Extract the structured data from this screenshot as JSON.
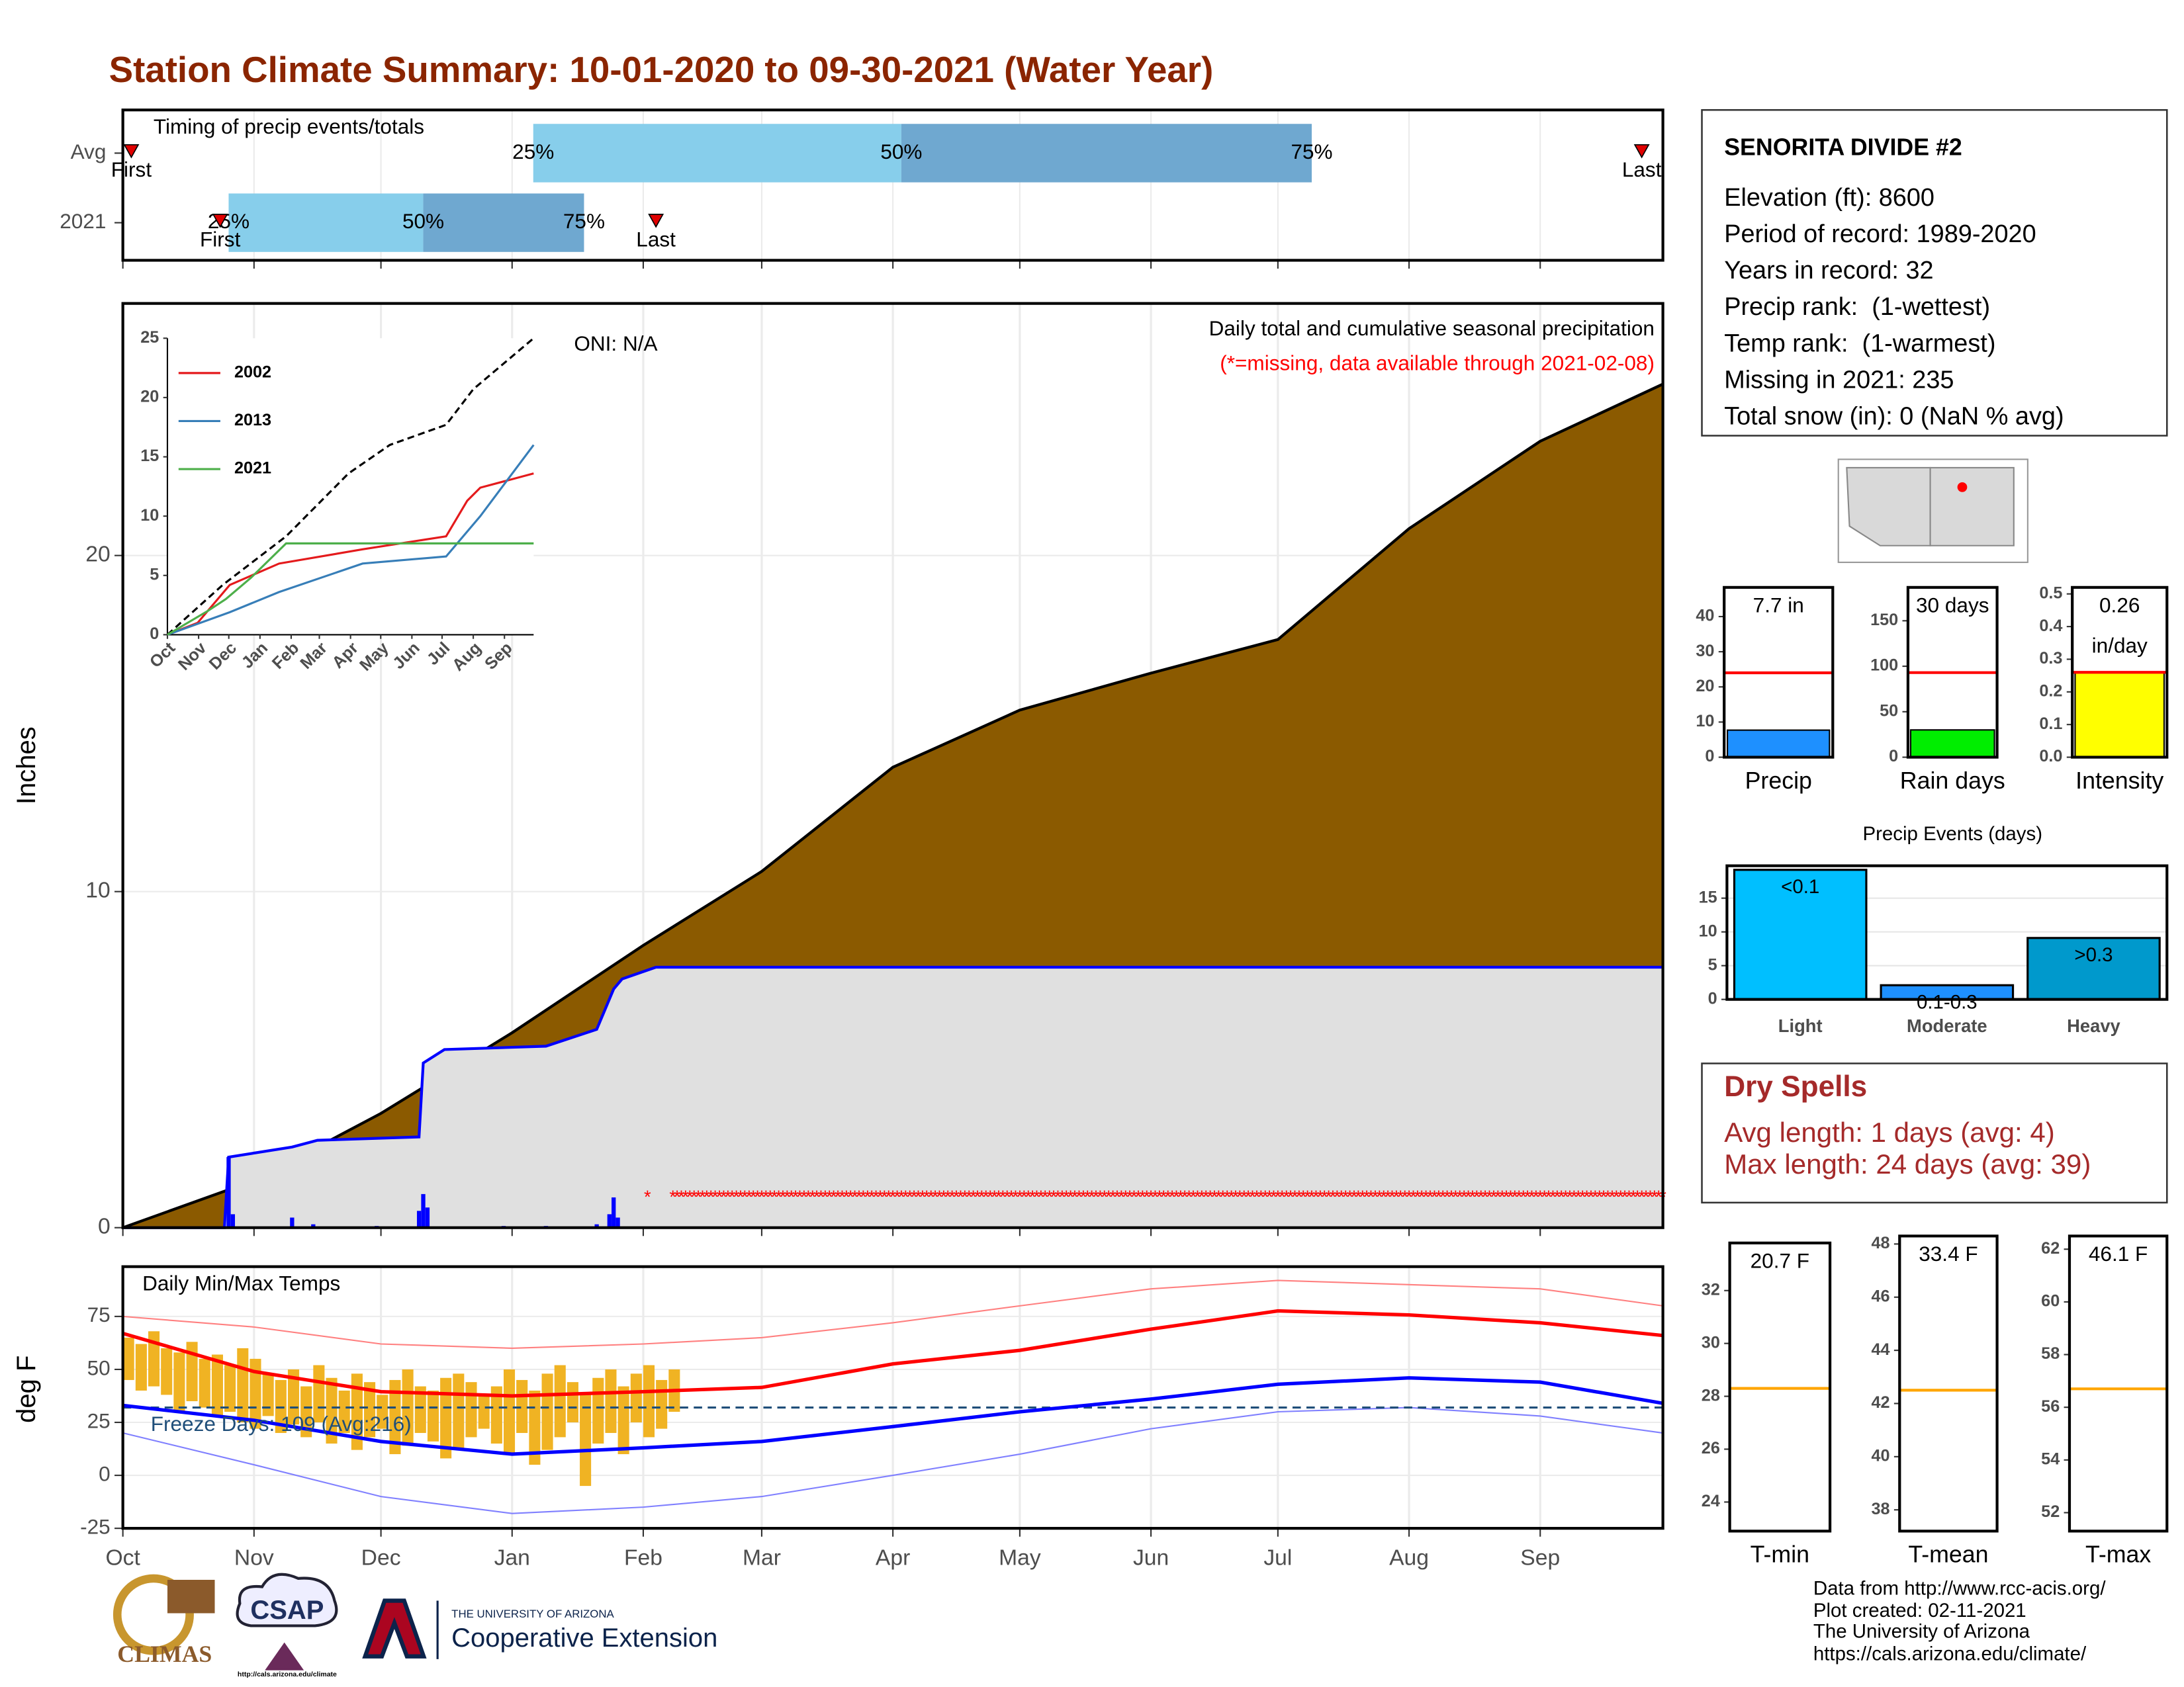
{
  "title": "Station Climate Summary: 10-01-2020 to 09-30-2021 (Water Year)",
  "station": {
    "name": "SENORITA DIVIDE #2",
    "lines": [
      "Elevation (ft): 8600",
      "Period of record: 1989-2020",
      "Years in record: 32",
      "Precip rank:  (1-wettest)",
      "Temp rank:  (1-warmest)",
      "Missing in 2021: 235",
      "Total snow (in): 0 (NaN % avg)"
    ]
  },
  "dry_spells": {
    "title": "Dry Spells",
    "lines": [
      "Avg length: 1 days (avg: 4)",
      "Max length: 24 days (avg: 39)"
    ]
  },
  "footer": [
    "Data from http://www.rcc-acis.org/",
    "Plot created: 02-11-2021",
    "The University of Arizona",
    "https://cals.arizona.edu/climate/"
  ],
  "logos": {
    "climas": "CLIMAS",
    "csap": "CSAP",
    "csap_url": "http://cals.arizona.edu/climate",
    "ua": "THE UNIVERSITY OF ARIZONA",
    "extension": "Cooperative Extension"
  },
  "chart_data": [
    {
      "type": "timing",
      "title": "Timing of precip events/totals",
      "categories": [
        "Avg",
        "2021"
      ],
      "first": [
        2,
        23
      ],
      "q25": [
        97,
        25
      ],
      "q50": [
        184,
        71
      ],
      "q75": [
        281,
        109
      ],
      "last": [
        359,
        126
      ],
      "first_label": "First",
      "last_label": "Last",
      "q_labels": [
        "25%",
        "50%",
        "75%"
      ],
      "xlim": [
        0,
        364
      ],
      "xticks": [
        0,
        31,
        61,
        92,
        123,
        151,
        182,
        212,
        243,
        273,
        304,
        335
      ],
      "colors": [
        "#87ceeb",
        "#6fa8d0"
      ],
      "marker_color": "#e00000"
    },
    {
      "type": "area",
      "title": "Daily total and cumulative seasonal precipitation",
      "subtitle": "(*=missing, data available through 2021-02-08)",
      "annotation": "ONI: N/A",
      "ylabel": "Inches",
      "xlim": [
        0,
        364
      ],
      "ylim": [
        0,
        27.5
      ],
      "yticks": [
        0,
        10,
        20
      ],
      "xticks": [
        0,
        31,
        61,
        92,
        123,
        151,
        182,
        212,
        243,
        273,
        304,
        335
      ],
      "grid": true,
      "avg": {
        "x": [
          0,
          31,
          61,
          92,
          123,
          151,
          182,
          212,
          243,
          273,
          304,
          335,
          364
        ],
        "values": [
          0,
          1.4,
          3.4,
          5.8,
          8.4,
          10.6,
          13.7,
          15.4,
          16.5,
          17.5,
          20.8,
          23.4,
          25.1
        ],
        "color": "#8b5a00"
      },
      "cumulative": {
        "x": [
          0,
          24,
          25,
          40,
          46,
          70,
          71,
          76,
          100,
          112,
          116,
          118,
          126,
          364
        ],
        "values": [
          0,
          0,
          2.1,
          2.4,
          2.6,
          2.7,
          4.9,
          5.3,
          5.4,
          5.9,
          7.1,
          7.4,
          7.75,
          7.75
        ],
        "color": "#0000ff",
        "fill": "#e0e0e0"
      },
      "daily": {
        "x": [
          25,
          26,
          40,
          45,
          60,
          70,
          71,
          72,
          90,
          100,
          112,
          115,
          116,
          117
        ],
        "values": [
          2.1,
          0.4,
          0.3,
          0.1,
          0.05,
          0.5,
          1.0,
          0.6,
          0.05,
          0.05,
          0.1,
          0.4,
          0.9,
          0.3
        ],
        "color": "#0000ff"
      },
      "missing": {
        "symbol": "*",
        "ranges": [
          [
            124,
            124
          ],
          [
            130,
            364
          ]
        ],
        "y": 1,
        "color": "#ff0000"
      }
    },
    {
      "type": "line",
      "xlim": [
        0,
        364
      ],
      "ylim": [
        0,
        25
      ],
      "yticks": [
        0,
        5,
        10,
        15,
        20,
        25
      ],
      "xticks": [
        {
          "value": 0,
          "label": "Oct"
        },
        {
          "value": 31,
          "label": "Nov"
        },
        {
          "value": 61,
          "label": "Dec"
        },
        {
          "value": 92,
          "label": "Jan"
        },
        {
          "value": 123,
          "label": "Feb"
        },
        {
          "value": 151,
          "label": "Mar"
        },
        {
          "value": 182,
          "label": "Apr"
        },
        {
          "value": 212,
          "label": "May"
        },
        {
          "value": 243,
          "label": "Jun"
        },
        {
          "value": 273,
          "label": "Jul"
        },
        {
          "value": 304,
          "label": "Aug"
        },
        {
          "value": 335,
          "label": "Sep"
        }
      ],
      "series": [
        {
          "name": "2002",
          "color": "#e41a1c",
          "x": [
            0,
            30,
            62,
            111,
            194,
            277,
            298,
            311,
            364
          ],
          "values": [
            0,
            1,
            4.2,
            6,
            7.2,
            8.3,
            11.3,
            12.4,
            13.6
          ]
        },
        {
          "name": "2013",
          "color": "#377eb8",
          "x": [
            0,
            62,
            111,
            194,
            277,
            311,
            364
          ],
          "values": [
            0,
            1.9,
            3.6,
            6,
            6.6,
            10,
            16
          ]
        },
        {
          "name": "2021",
          "color": "#4daf4a",
          "x": [
            0,
            40,
            58,
            83,
            118,
            364
          ],
          "values": [
            0,
            2,
            3,
            4.8,
            7.7,
            7.7
          ]
        }
      ],
      "avg": {
        "x": [
          0,
          55,
          118,
          180,
          221,
          277,
          304,
          364
        ],
        "values": [
          0,
          4.2,
          8.3,
          13.6,
          16,
          17.7,
          20.7,
          25
        ],
        "color": "#000000"
      }
    },
    {
      "type": "bar",
      "categories": [
        "Precip"
      ],
      "values": [
        7.7
      ],
      "value_labels": [
        "7.7 in"
      ],
      "avg": 24,
      "ylim": [
        0,
        48.3
      ],
      "yticks": [
        0,
        10,
        20,
        30,
        40
      ],
      "color": "#1e90ff",
      "avg_color": "#ff0000"
    },
    {
      "type": "bar",
      "categories": [
        "Rain days"
      ],
      "values": [
        30
      ],
      "value_labels": [
        "30 days"
      ],
      "avg": 93,
      "ylim": [
        0,
        186.7
      ],
      "yticks": [
        0,
        50,
        100,
        150
      ],
      "color": "#00ee00",
      "avg_color": "#ff0000"
    },
    {
      "type": "bar",
      "categories": [
        "Intensity"
      ],
      "values": [
        0.26
      ],
      "value_labels": [
        "0.26"
      ],
      "unit": "in/day",
      "avg": 0.26,
      "ylim": [
        0,
        0.52
      ],
      "yticks": [
        {
          "value": 0,
          "label": "0.0"
        },
        {
          "value": 0.1,
          "label": "0.1"
        },
        {
          "value": 0.2,
          "label": "0.2"
        },
        {
          "value": 0.3,
          "label": "0.3"
        },
        {
          "value": 0.4,
          "label": "0.4"
        },
        {
          "value": 0.5,
          "label": "0.5"
        }
      ],
      "color": "#ffff00",
      "avg_color": "#ff0000"
    },
    {
      "type": "bar",
      "title": "Precip Events (days)",
      "categories": [
        "Light",
        "Moderate",
        "Heavy"
      ],
      "values": [
        19.2,
        2.1,
        9.1
      ],
      "bin_labels": [
        "<0.1",
        "0.1-0.3",
        ">0.3"
      ],
      "ylim": [
        0,
        19.8
      ],
      "yticks": [
        0,
        5,
        10,
        15
      ],
      "grid": true,
      "colors": [
        "#00bfff",
        "#1e90ff",
        "#0099cc"
      ]
    },
    {
      "type": "temperature",
      "title": "Daily Min/Max Temps",
      "annotation": "Freeze Days: 109 (Avg:216)",
      "ylabel": "deg F",
      "xlim": [
        0,
        364
      ],
      "ylim": [
        -25,
        98.5
      ],
      "yticks": [
        -25,
        0,
        25,
        50,
        75
      ],
      "xticks": [
        {
          "value": 0,
          "label": "Oct"
        },
        {
          "value": 31,
          "label": "Nov"
        },
        {
          "value": 61,
          "label": "Dec"
        },
        {
          "value": 92,
          "label": "Jan"
        },
        {
          "value": 123,
          "label": "Feb"
        },
        {
          "value": 151,
          "label": "Mar"
        },
        {
          "value": 182,
          "label": "Apr"
        },
        {
          "value": 212,
          "label": "May"
        },
        {
          "value": 243,
          "label": "Jun"
        },
        {
          "value": 273,
          "label": "Jul"
        },
        {
          "value": 304,
          "label": "Aug"
        },
        {
          "value": 335,
          "label": "Sep"
        }
      ],
      "freeze": 32,
      "avg_max": {
        "x": [
          0,
          31,
          61,
          92,
          123,
          151,
          182,
          212,
          243,
          273,
          304,
          335,
          364
        ],
        "values": [
          67,
          49,
          39.5,
          37.5,
          39.5,
          41.5,
          52.6,
          59,
          69,
          77.6,
          75.7,
          72,
          66
        ],
        "color": "#ff0000"
      },
      "avg_min": {
        "x": [
          0,
          31,
          61,
          92,
          123,
          151,
          182,
          212,
          243,
          273,
          304,
          335,
          364
        ],
        "values": [
          33,
          26,
          16,
          10,
          13,
          16,
          23,
          30,
          36,
          43,
          46,
          44,
          34
        ],
        "color": "#0000ff"
      },
      "rec_max": {
        "x": [
          0,
          31,
          61,
          92,
          123,
          151,
          182,
          212,
          243,
          273,
          304,
          335,
          364
        ],
        "values": [
          75,
          70,
          62,
          60,
          62,
          65,
          72,
          80,
          88,
          92,
          90,
          88,
          80
        ],
        "color": "#ff8080"
      },
      "rec_min": {
        "x": [
          0,
          31,
          61,
          92,
          123,
          151,
          182,
          212,
          243,
          273,
          304,
          335,
          364
        ],
        "values": [
          20,
          5,
          -10,
          -18,
          -15,
          -10,
          0,
          10,
          22,
          30,
          32,
          28,
          20
        ],
        "color": "#8080ff"
      },
      "daily": {
        "x": [
          0,
          3,
          6,
          9,
          12,
          15,
          18,
          21,
          24,
          27,
          30,
          33,
          36,
          39,
          42,
          45,
          48,
          51,
          54,
          57,
          60,
          63,
          66,
          69,
          72,
          75,
          78,
          81,
          84,
          87,
          90,
          93,
          96,
          99,
          102,
          105,
          108,
          111,
          114,
          117,
          120,
          123,
          126,
          129
        ],
        "max": [
          65,
          62,
          68,
          60,
          58,
          63,
          55,
          57,
          52,
          60,
          55,
          48,
          45,
          50,
          42,
          52,
          46,
          40,
          48,
          44,
          38,
          45,
          50,
          42,
          40,
          46,
          48,
          44,
          38,
          42,
          50,
          45,
          40,
          48,
          52,
          44,
          38,
          46,
          50,
          42,
          48,
          52,
          45,
          50
        ],
        "min": [
          45,
          40,
          42,
          38,
          30,
          35,
          32,
          28,
          30,
          25,
          22,
          28,
          20,
          24,
          18,
          25,
          15,
          20,
          12,
          18,
          22,
          10,
          14,
          20,
          16,
          8,
          12,
          18,
          22,
          15,
          10,
          20,
          5,
          12,
          18,
          25,
          -5,
          15,
          20,
          10,
          25,
          18,
          22,
          30
        ],
        "color": "#f0b323"
      }
    },
    {
      "type": "bar",
      "categories": [
        "T-min"
      ],
      "values": [
        20.7
      ],
      "value_labels": [
        "20.7 F"
      ],
      "avg": 28.3,
      "ylim": [
        22.9,
        33.8
      ],
      "yticks": [
        24,
        26,
        28,
        30,
        32
      ],
      "color": "#4682b4",
      "avg_color": "#ffa500"
    },
    {
      "type": "bar",
      "categories": [
        "T-mean"
      ],
      "values": [
        33.4
      ],
      "value_labels": [
        "33.4 F"
      ],
      "avg": 42.5,
      "ylim": [
        37.2,
        48.3
      ],
      "yticks": [
        38,
        40,
        42,
        44,
        46,
        48
      ],
      "color": "#4682b4",
      "avg_color": "#ffa500"
    },
    {
      "type": "bar",
      "categories": [
        "T-max"
      ],
      "values": [
        46.1
      ],
      "value_labels": [
        "46.1 F"
      ],
      "avg": 56.7,
      "ylim": [
        51.3,
        62.5
      ],
      "yticks": [
        52,
        54,
        56,
        58,
        60,
        62
      ],
      "color": "#4682b4",
      "avg_color": "#ffa500"
    }
  ]
}
